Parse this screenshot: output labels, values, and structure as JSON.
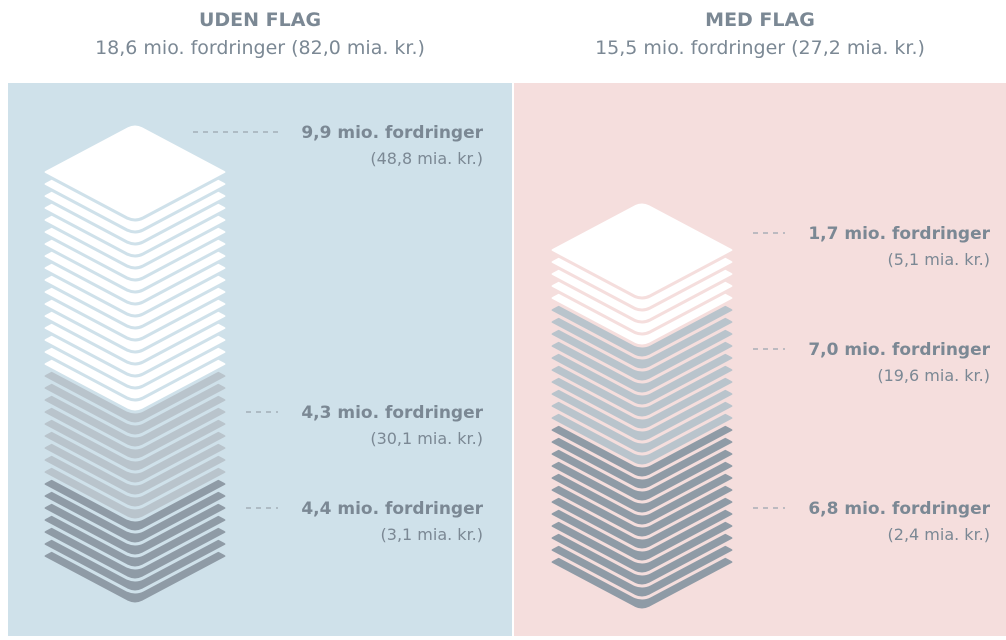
{
  "panels": [
    {
      "title": "UDEN FLAG",
      "subtitle": "18,6 mio. fordringer (82,0 mia. kr.)",
      "segments": [
        {
          "label": "9,9 mio. fordringer",
          "amount": "(48,8 mia. kr.)"
        },
        {
          "label": "4,3 mio. fordringer",
          "amount": "(30,1 mia. kr.)"
        },
        {
          "label": "4,4 mio. fordringer",
          "amount": "(3,1 mia. kr.)"
        }
      ]
    },
    {
      "title": "MED FLAG",
      "subtitle": "15,5 mio. fordringer (27,2 mia. kr.)",
      "segments": [
        {
          "label": "1,7 mio. fordringer",
          "amount": "(5,1 mia. kr.)"
        },
        {
          "label": "7,0 mio. fordringer",
          "amount": "(19,6 mia. kr.)"
        },
        {
          "label": "6,8 mio. fordringer",
          "amount": "(2,4 mia. kr.)"
        }
      ]
    }
  ]
}
